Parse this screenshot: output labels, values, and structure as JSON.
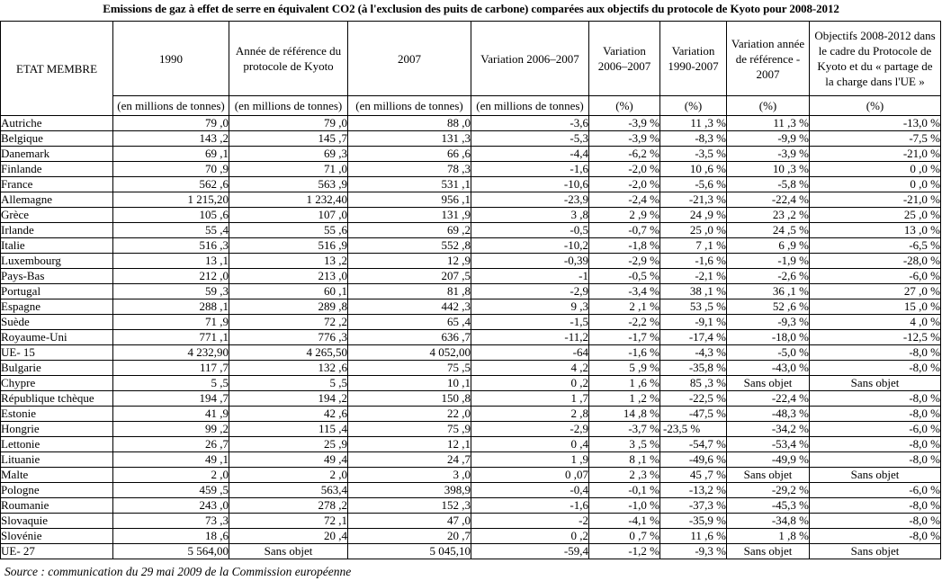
{
  "title": "Emissions de gaz à effet de serre en équivalent CO2 (à l'exclusion des puits de carbone) comparées aux objectifs du protocole de Kyoto pour 2008-2012",
  "source_note": "Source : communication du 29 mai 2009 de la Commission européenne",
  "table": {
    "header": {
      "etat_membre": "ETAT MEMBRE",
      "y1990": "1990",
      "ref_kyoto": "Année de référence du\nprotocole de Kyoto",
      "y2007": "2007",
      "var_2006_2007_mt": "Variation 2006–2007",
      "var_2006_2007_pct": "Variation\n2006–2007",
      "var_1990_2007": "Variation\n1990-2007",
      "var_ref_2007": "Variation année\nde référence -\n2007",
      "objectifs": "Objectifs 2008-2012 dans\nle cadre du Protocole de\nKyoto et du « partage de\nla charge dans l'UE »"
    },
    "units": {
      "mt": "(en millions de tonnes)",
      "pct": "(%)"
    },
    "rows": [
      {
        "cells": [
          "Autriche",
          "79 ,0",
          "79 ,0",
          "88 ,0",
          "-3,6",
          "-3,9 %",
          "11 ,3 %",
          "11 ,3 %",
          "-13,0 %"
        ]
      },
      {
        "cells": [
          "Belgique",
          "143 ,2",
          "145 ,7",
          "131 ,3",
          "-5,3",
          "-3,9 %",
          "-8,3 %",
          "-9,9 %",
          "-7,5 %"
        ]
      },
      {
        "cells": [
          "Danemark",
          "69 ,1",
          "69 ,3",
          "66 ,6",
          "-4,4",
          "-6,2 %",
          "-3,5 %",
          "-3,9 %",
          "-21,0 %"
        ]
      },
      {
        "cells": [
          "Finlande",
          "70 ,9",
          "71 ,0",
          "78 ,3",
          "-1,6",
          "-2,0 %",
          "10 ,6 %",
          "10 ,3 %",
          "0 ,0 %"
        ]
      },
      {
        "cells": [
          "France",
          "562 ,6",
          "563 ,9",
          "531 ,1",
          "-10,6",
          "-2,0 %",
          "-5,6 %",
          "-5,8 %",
          "0 ,0 %"
        ]
      },
      {
        "cells": [
          "Allemagne",
          "1 215,20",
          "1 232,40",
          "956 ,1",
          "-23,9",
          "-2,4 %",
          "-21,3 %",
          "-22,4 %",
          "-21,0 %"
        ]
      },
      {
        "cells": [
          "Grèce",
          "105 ,6",
          "107 ,0",
          "131 ,9",
          "3 ,8",
          "2 ,9 %",
          "24 ,9 %",
          "23 ,2 %",
          "25 ,0 %"
        ]
      },
      {
        "cells": [
          "Irlande",
          "55 ,4",
          "55 ,6",
          "69 ,2",
          "-0,5",
          "-0,7 %",
          "25 ,0 %",
          "24 ,5 %",
          "13 ,0 %"
        ]
      },
      {
        "cells": [
          "Italie",
          "516 ,3",
          "516 ,9",
          "552 ,8",
          "-10,2",
          "-1,8 %",
          "7 ,1 %",
          "6 ,9 %",
          "-6,5 %"
        ]
      },
      {
        "cells": [
          "Luxembourg",
          "13 ,1",
          "13 ,2",
          "12 ,9",
          "-0,39",
          "-2,9 %",
          "-1,6 %",
          "-1,9 %",
          "-28,0 %"
        ]
      },
      {
        "cells": [
          "Pays-Bas",
          "212 ,0",
          "213 ,0",
          "207 ,5",
          "-1",
          "-0,5 %",
          "-2,1 %",
          "-2,6 %",
          "-6,0 %"
        ]
      },
      {
        "cells": [
          "Portugal",
          "59 ,3",
          "60 ,1",
          "81 ,8",
          "-2,9",
          "-3,4 %",
          "38 ,1 %",
          "36 ,1 %",
          "27 ,0 %"
        ]
      },
      {
        "cells": [
          "Espagne",
          "288 ,1",
          "289 ,8",
          "442 ,3",
          "9 ,3",
          "2 ,1 %",
          "53 ,5 %",
          "52 ,6 %",
          "15 ,0 %"
        ]
      },
      {
        "cells": [
          "Suède",
          "71 ,9",
          "72 ,2",
          "65 ,4",
          "-1,5",
          "-2,2 %",
          "-9,1 %",
          "-9,3 %",
          "4 ,0 %"
        ]
      },
      {
        "cells": [
          "Royaume-Uni",
          "771 ,1",
          "776 ,3",
          "636 ,7",
          "-11,2",
          "-1,7 %",
          "-17,4 %",
          "-18,0 %",
          "-12,5 %"
        ]
      },
      {
        "cells": [
          "UE- 15",
          "4 232,90",
          "4 265,50",
          "4 052,00",
          "-64",
          "-1,6 %",
          "-4,3 %",
          "-5,0 %",
          "-8,0 %"
        ]
      },
      {
        "cells": [
          "Bulgarie",
          "117 ,7",
          "132 ,6",
          "75 ,5",
          "4 ,2",
          "5 ,9 %",
          "-35,8 %",
          "-43,0 %",
          "-8,0 %"
        ]
      },
      {
        "cells": [
          "Chypre",
          "5 ,5",
          "5 ,5",
          "10 ,1",
          "0 ,2",
          "1 ,6 %",
          "85 ,3 %",
          "Sans objet",
          "Sans objet"
        ]
      },
      {
        "cells": [
          "République tchèque",
          "194 ,7",
          "194 ,2",
          "150 ,8",
          "1 ,7",
          "1 ,2 %",
          "-22,5 %",
          "-22,4 %",
          "-8,0 %"
        ]
      },
      {
        "cells": [
          "Estonie",
          "41 ,9",
          "42 ,6",
          "22 ,0",
          "2 ,8",
          "14 ,8 %",
          "-47,5 %",
          "-48,3 %",
          "-8,0 %"
        ]
      },
      {
        "cells": [
          "Hongrie",
          "99 ,2",
          "115 ,4",
          "75 ,9",
          "-2,9",
          "-3,7 %",
          "-23,5 %",
          "-34,2 %",
          "-6,0 %"
        ],
        "aligns": {
          "6": "left"
        }
      },
      {
        "cells": [
          "Lettonie",
          "26 ,7",
          "25 ,9",
          "12 ,1",
          "0 ,4",
          "3 ,5 %",
          "-54,7 %",
          "-53,4 %",
          "-8,0 %"
        ]
      },
      {
        "cells": [
          "Lituanie",
          "49 ,1",
          "49 ,4",
          "24 ,7",
          "1 ,9",
          "8 ,1 %",
          "-49,6 %",
          "-49,9 %",
          "-8,0 %"
        ]
      },
      {
        "cells": [
          "Malte",
          "2 ,0",
          "2 ,0",
          "3 ,0",
          "0 ,07",
          "2 ,3 %",
          "45 ,7 %",
          "Sans objet",
          "Sans objet"
        ]
      },
      {
        "cells": [
          "Pologne",
          "459 ,5",
          "563,4",
          "398,9",
          "-0,4",
          "-0,1 %",
          "-13,2 %",
          "-29,2 %",
          "-6,0 %"
        ]
      },
      {
        "cells": [
          "Roumanie",
          "243 ,0",
          "278 ,2",
          "152 ,3",
          "-1,6",
          "-1,0 %",
          "-37,3 %",
          "-45,3 %",
          "-8,0 %"
        ]
      },
      {
        "cells": [
          "Slovaquie",
          "73 ,3",
          "72 ,1",
          "47 ,0",
          "-2",
          "-4,1 %",
          "-35,9 %",
          "-34,8 %",
          "-8,0 %"
        ]
      },
      {
        "cells": [
          "Slovénie",
          "18 ,6",
          "20 ,4",
          "20 ,7",
          "0 ,2",
          "0 ,7 %",
          "11 ,6 %",
          "1 ,8 %",
          "-8,0 %"
        ]
      },
      {
        "cells": [
          "UE- 27",
          "5 564,00",
          "Sans objet",
          "5 045,10",
          "-59,4",
          "-1,2 %",
          "-9,3 %",
          "Sans objet",
          "Sans objet"
        ]
      }
    ],
    "sans_objet_label": "Sans objet"
  }
}
